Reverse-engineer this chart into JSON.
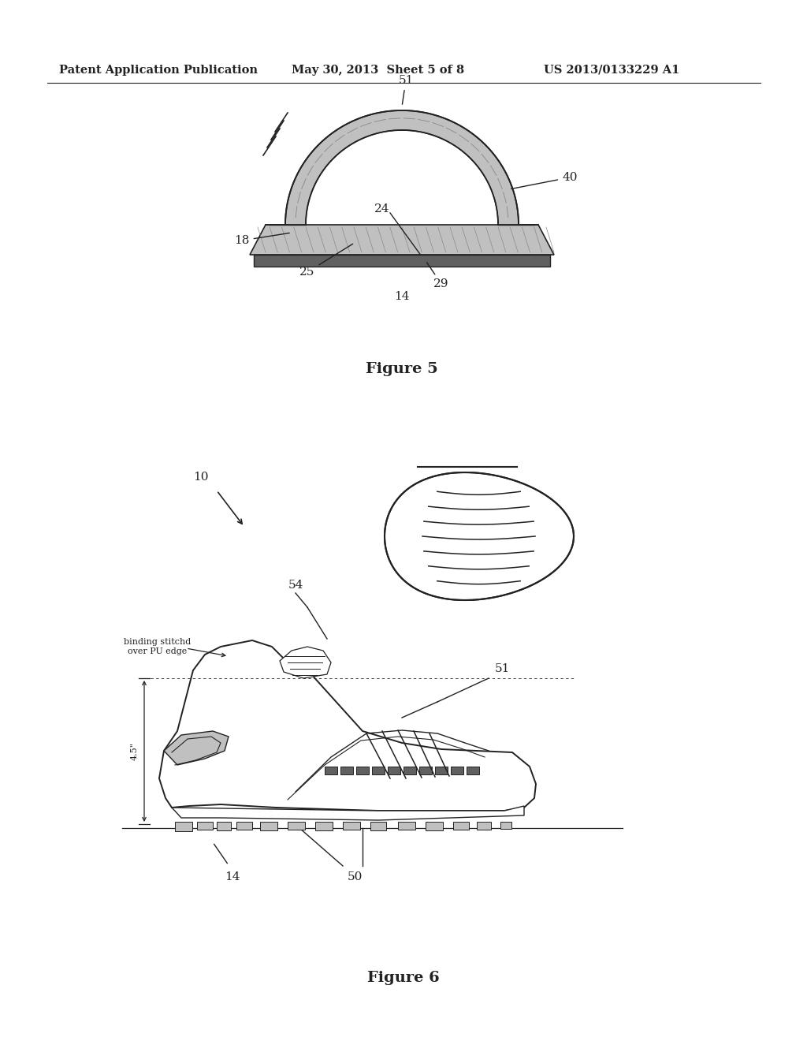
{
  "background_color": "#ffffff",
  "header_left": "Patent Application Publication",
  "header_center": "May 30, 2013  Sheet 5 of 8",
  "header_right": "US 2013/0133229 A1",
  "fig5_caption": "Figure 5",
  "fig6_caption": "Figure 6",
  "gray_light": "#c0c0c0",
  "gray_medium": "#999999",
  "gray_dark": "#606060",
  "gray_hatch": "#888888",
  "white": "#ffffff",
  "black": "#000000",
  "line_color": "#222222"
}
